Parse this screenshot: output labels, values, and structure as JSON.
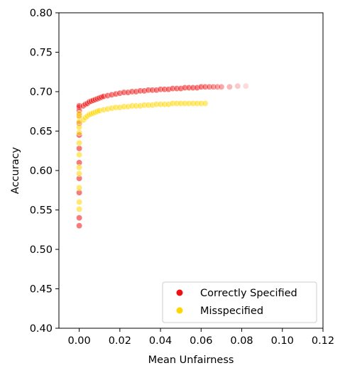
{
  "chart_data": {
    "type": "scatter",
    "title": "",
    "xlabel": "Mean Unfairness",
    "ylabel": "Accuracy",
    "xlim": [
      -0.01,
      0.12
    ],
    "ylim": [
      0.4,
      0.8
    ],
    "xticks": [
      "0.00",
      "0.02",
      "0.04",
      "0.06",
      "0.08",
      "0.10",
      "0.12"
    ],
    "yticks": [
      "0.40",
      "0.45",
      "0.50",
      "0.55",
      "0.60",
      "0.65",
      "0.70",
      "0.75",
      "0.80"
    ],
    "grid": false,
    "legend_position": "lower-right",
    "series": [
      {
        "name": "Correctly Specified",
        "color": "#ee1111",
        "points": [
          [
            0.0,
            0.53
          ],
          [
            0.0,
            0.54
          ],
          [
            0.0,
            0.572
          ],
          [
            0.0,
            0.59
          ],
          [
            0.0,
            0.61
          ],
          [
            0.0,
            0.628
          ],
          [
            0.0,
            0.645
          ],
          [
            0.0,
            0.66
          ],
          [
            0.0,
            0.67
          ],
          [
            0.0,
            0.676
          ],
          [
            0.0,
            0.68
          ],
          [
            0.0,
            0.682
          ],
          [
            0.002,
            0.682
          ],
          [
            0.003,
            0.684
          ],
          [
            0.004,
            0.685
          ],
          [
            0.005,
            0.687
          ],
          [
            0.006,
            0.688
          ],
          [
            0.007,
            0.689
          ],
          [
            0.008,
            0.69
          ],
          [
            0.009,
            0.691
          ],
          [
            0.01,
            0.692
          ],
          [
            0.011,
            0.693
          ],
          [
            0.012,
            0.694
          ],
          [
            0.014,
            0.695
          ],
          [
            0.016,
            0.696
          ],
          [
            0.018,
            0.697
          ],
          [
            0.02,
            0.698
          ],
          [
            0.022,
            0.699
          ],
          [
            0.024,
            0.699
          ],
          [
            0.026,
            0.7
          ],
          [
            0.028,
            0.7
          ],
          [
            0.03,
            0.701
          ],
          [
            0.032,
            0.701
          ],
          [
            0.034,
            0.702
          ],
          [
            0.036,
            0.702
          ],
          [
            0.038,
            0.702
          ],
          [
            0.04,
            0.703
          ],
          [
            0.042,
            0.703
          ],
          [
            0.044,
            0.703
          ],
          [
            0.046,
            0.704
          ],
          [
            0.048,
            0.704
          ],
          [
            0.05,
            0.704
          ],
          [
            0.052,
            0.705
          ],
          [
            0.054,
            0.705
          ],
          [
            0.056,
            0.705
          ],
          [
            0.058,
            0.705
          ],
          [
            0.06,
            0.706
          ],
          [
            0.062,
            0.706
          ],
          [
            0.064,
            0.706
          ],
          [
            0.066,
            0.706
          ],
          [
            0.068,
            0.706
          ],
          [
            0.07,
            0.706
          ],
          [
            0.074,
            0.706
          ],
          [
            0.078,
            0.707
          ],
          [
            0.082,
            0.707
          ]
        ]
      },
      {
        "name": "Misspecified",
        "color": "#ffd700",
        "points": [
          [
            0.0,
            0.551
          ],
          [
            0.0,
            0.56
          ],
          [
            0.0,
            0.578
          ],
          [
            0.0,
            0.596
          ],
          [
            0.0,
            0.604
          ],
          [
            0.0,
            0.62
          ],
          [
            0.0,
            0.635
          ],
          [
            0.0,
            0.648
          ],
          [
            0.0,
            0.655
          ],
          [
            0.0,
            0.662
          ],
          [
            0.0,
            0.668
          ],
          [
            0.0,
            0.672
          ],
          [
            0.002,
            0.664
          ],
          [
            0.003,
            0.667
          ],
          [
            0.004,
            0.669
          ],
          [
            0.005,
            0.671
          ],
          [
            0.006,
            0.672
          ],
          [
            0.007,
            0.673
          ],
          [
            0.008,
            0.674
          ],
          [
            0.009,
            0.675
          ],
          [
            0.01,
            0.676
          ],
          [
            0.012,
            0.677
          ],
          [
            0.014,
            0.678
          ],
          [
            0.016,
            0.679
          ],
          [
            0.018,
            0.68
          ],
          [
            0.02,
            0.68
          ],
          [
            0.022,
            0.681
          ],
          [
            0.024,
            0.681
          ],
          [
            0.026,
            0.682
          ],
          [
            0.028,
            0.682
          ],
          [
            0.03,
            0.682
          ],
          [
            0.032,
            0.683
          ],
          [
            0.034,
            0.683
          ],
          [
            0.036,
            0.683
          ],
          [
            0.038,
            0.684
          ],
          [
            0.04,
            0.684
          ],
          [
            0.042,
            0.684
          ],
          [
            0.044,
            0.684
          ],
          [
            0.046,
            0.685
          ],
          [
            0.048,
            0.685
          ],
          [
            0.05,
            0.685
          ],
          [
            0.052,
            0.685
          ],
          [
            0.054,
            0.685
          ],
          [
            0.056,
            0.685
          ],
          [
            0.058,
            0.685
          ],
          [
            0.06,
            0.685
          ],
          [
            0.062,
            0.685
          ]
        ]
      }
    ]
  }
}
